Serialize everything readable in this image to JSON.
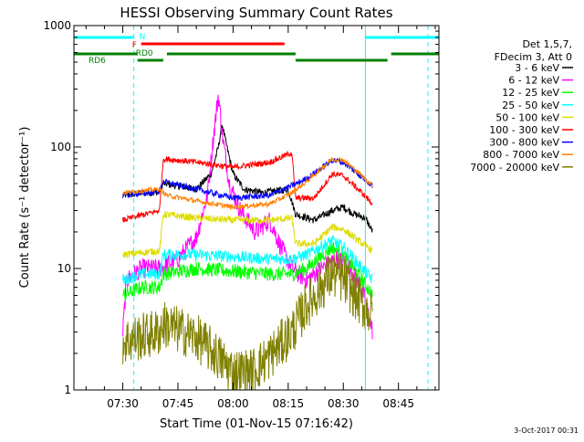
{
  "chart_data": {
    "type": "line",
    "title": "HESSI Observing Summary Count Rates",
    "xlabel": "Start Time (01-Nov-15 07:16:42)",
    "ylabel": "Count Rate (s⁻¹ detector⁻¹)",
    "x_range": [
      "07:16:42",
      "08:56:00"
    ],
    "y_range": [
      1,
      1000
    ],
    "y_scale": "log",
    "x_ticks": [
      "07:30",
      "07:45",
      "08:00",
      "08:15",
      "08:30",
      "08:45"
    ],
    "y_ticks": [
      "1",
      "10",
      "100",
      "1000"
    ],
    "grid": false,
    "legend_position": "right",
    "legend_header": [
      "Det 1,5,7,",
      "FDecim 3, Att 0"
    ],
    "footer_date": "3-Oct-2017 00:31",
    "flags": {
      "N_label": "N",
      "F_label": "F",
      "RD0_label": "RD0",
      "RD6_label": "RD6",
      "N_intervals": [
        [
          "07:16:42",
          "07:33:00"
        ],
        [
          "08:36:00",
          "08:56:00"
        ]
      ],
      "F_intervals": [
        [
          "07:35:00",
          "08:14:00"
        ]
      ],
      "RD0_intervals": [
        [
          "07:16:42",
          "07:34:00"
        ],
        [
          "07:42:00",
          "08:17:00"
        ],
        [
          "08:43:00",
          "08:56:00"
        ]
      ],
      "RD6_intervals": [
        [
          "07:34:00",
          "07:41:00"
        ],
        [
          "08:17:00",
          "08:42:00"
        ]
      ],
      "N_color": "#00ffff",
      "F_color": "#ff0000",
      "RD_color": "#008000"
    },
    "vlines": {
      "solid": [
        "07:16:42",
        "08:36:00"
      ],
      "dashed": [
        "07:33:00",
        "08:53:00"
      ],
      "color": "#00ffff"
    },
    "series": [
      {
        "name": "3 - 6 keV",
        "color": "#000000",
        "noise": 0.03,
        "points": [
          [
            "07:30",
            40
          ],
          [
            "07:40",
            43
          ],
          [
            "07:41",
            50
          ],
          [
            "07:50",
            45
          ],
          [
            "07:54",
            60
          ],
          [
            "07:56",
            100
          ],
          [
            "07:57",
            155
          ],
          [
            "07:58",
            110
          ],
          [
            "08:00",
            60
          ],
          [
            "08:03",
            45
          ],
          [
            "08:08",
            42
          ],
          [
            "08:15",
            45
          ],
          [
            "08:17",
            28
          ],
          [
            "08:22",
            25
          ],
          [
            "08:27",
            30
          ],
          [
            "08:30",
            32
          ],
          [
            "08:33",
            28
          ],
          [
            "08:36",
            26
          ],
          [
            "08:38",
            20
          ]
        ]
      },
      {
        "name": "6 - 12 keV",
        "color": "#ff00ff",
        "noise": 0.08,
        "points": [
          [
            "07:30",
            3
          ],
          [
            "07:31",
            8
          ],
          [
            "07:35",
            10
          ],
          [
            "07:40",
            10
          ],
          [
            "07:45",
            12
          ],
          [
            "07:50",
            18
          ],
          [
            "07:53",
            40
          ],
          [
            "07:55",
            150
          ],
          [
            "07:56",
            270
          ],
          [
            "07:57",
            130
          ],
          [
            "07:59",
            50
          ],
          [
            "08:02",
            30
          ],
          [
            "08:06",
            20
          ],
          [
            "08:10",
            25
          ],
          [
            "08:13",
            15
          ],
          [
            "08:16",
            10
          ],
          [
            "08:20",
            8
          ],
          [
            "08:24",
            10
          ],
          [
            "08:28",
            12
          ],
          [
            "08:31",
            11
          ],
          [
            "08:35",
            7
          ],
          [
            "08:38",
            3
          ]
        ]
      },
      {
        "name": "12 - 25 keV",
        "color": "#00ff00",
        "noise": 0.06,
        "points": [
          [
            "07:30",
            6
          ],
          [
            "07:35",
            7
          ],
          [
            "07:40",
            7
          ],
          [
            "07:41",
            9
          ],
          [
            "07:50",
            10
          ],
          [
            "08:00",
            9.5
          ],
          [
            "08:10",
            9
          ],
          [
            "08:16",
            9
          ],
          [
            "08:20",
            10
          ],
          [
            "08:27",
            15
          ],
          [
            "08:30",
            13
          ],
          [
            "08:34",
            9
          ],
          [
            "08:38",
            6
          ]
        ]
      },
      {
        "name": "25 - 50 keV",
        "color": "#00ffff",
        "noise": 0.05,
        "points": [
          [
            "07:30",
            8
          ],
          [
            "07:35",
            9
          ],
          [
            "07:40",
            9
          ],
          [
            "07:41",
            13
          ],
          [
            "07:50",
            13
          ],
          [
            "08:00",
            12.5
          ],
          [
            "08:10",
            12
          ],
          [
            "08:16",
            12
          ],
          [
            "08:20",
            13
          ],
          [
            "08:27",
            17
          ],
          [
            "08:30",
            15
          ],
          [
            "08:34",
            11
          ],
          [
            "08:38",
            8
          ]
        ]
      },
      {
        "name": "50 - 100 keV",
        "color": "#dddd00",
        "noise": 0.03,
        "points": [
          [
            "07:30",
            13
          ],
          [
            "07:40",
            14
          ],
          [
            "07:41",
            28
          ],
          [
            "07:50",
            26
          ],
          [
            "08:00",
            25
          ],
          [
            "08:10",
            25
          ],
          [
            "08:16",
            26
          ],
          [
            "08:17",
            16
          ],
          [
            "08:22",
            16
          ],
          [
            "08:27",
            22
          ],
          [
            "08:30",
            21
          ],
          [
            "08:34",
            17
          ],
          [
            "08:38",
            14
          ]
        ]
      },
      {
        "name": "100 - 300 keV",
        "color": "#ff0000",
        "noise": 0.025,
        "points": [
          [
            "07:30",
            25
          ],
          [
            "07:40",
            30
          ],
          [
            "07:41",
            80
          ],
          [
            "07:50",
            75
          ],
          [
            "08:00",
            68
          ],
          [
            "08:10",
            75
          ],
          [
            "08:16",
            90
          ],
          [
            "08:17",
            38
          ],
          [
            "08:22",
            38
          ],
          [
            "08:27",
            60
          ],
          [
            "08:30",
            58
          ],
          [
            "08:34",
            45
          ],
          [
            "08:38",
            34
          ]
        ]
      },
      {
        "name": "300 - 800 keV",
        "color": "#0000ff",
        "noise": 0.025,
        "points": [
          [
            "07:30",
            40
          ],
          [
            "07:40",
            43
          ],
          [
            "07:41",
            52
          ],
          [
            "07:50",
            45
          ],
          [
            "08:00",
            38
          ],
          [
            "08:10",
            40
          ],
          [
            "08:16",
            48
          ],
          [
            "08:20",
            55
          ],
          [
            "08:27",
            78
          ],
          [
            "08:30",
            75
          ],
          [
            "08:34",
            60
          ],
          [
            "08:38",
            48
          ]
        ]
      },
      {
        "name": "800 - 7000 keV",
        "color": "#ff8000",
        "noise": 0.02,
        "points": [
          [
            "07:30",
            42
          ],
          [
            "07:40",
            45
          ],
          [
            "07:42",
            40
          ],
          [
            "07:50",
            36
          ],
          [
            "08:00",
            32
          ],
          [
            "08:10",
            34
          ],
          [
            "08:16",
            42
          ],
          [
            "08:20",
            52
          ],
          [
            "08:27",
            80
          ],
          [
            "08:30",
            78
          ],
          [
            "08:34",
            62
          ],
          [
            "08:38",
            48
          ]
        ]
      },
      {
        "name": "7000 - 20000 keV",
        "color": "#808000",
        "noise": 0.2,
        "points": [
          [
            "07:30",
            2.5
          ],
          [
            "07:40",
            3
          ],
          [
            "07:41",
            3.5
          ],
          [
            "07:50",
            2.7
          ],
          [
            "07:55",
            2.0
          ],
          [
            "08:00",
            1.4
          ],
          [
            "08:05",
            1.4
          ],
          [
            "08:10",
            1.9
          ],
          [
            "08:16",
            3
          ],
          [
            "08:20",
            5
          ],
          [
            "08:27",
            9
          ],
          [
            "08:30",
            8
          ],
          [
            "08:34",
            5.5
          ],
          [
            "08:38",
            4
          ]
        ]
      }
    ]
  }
}
